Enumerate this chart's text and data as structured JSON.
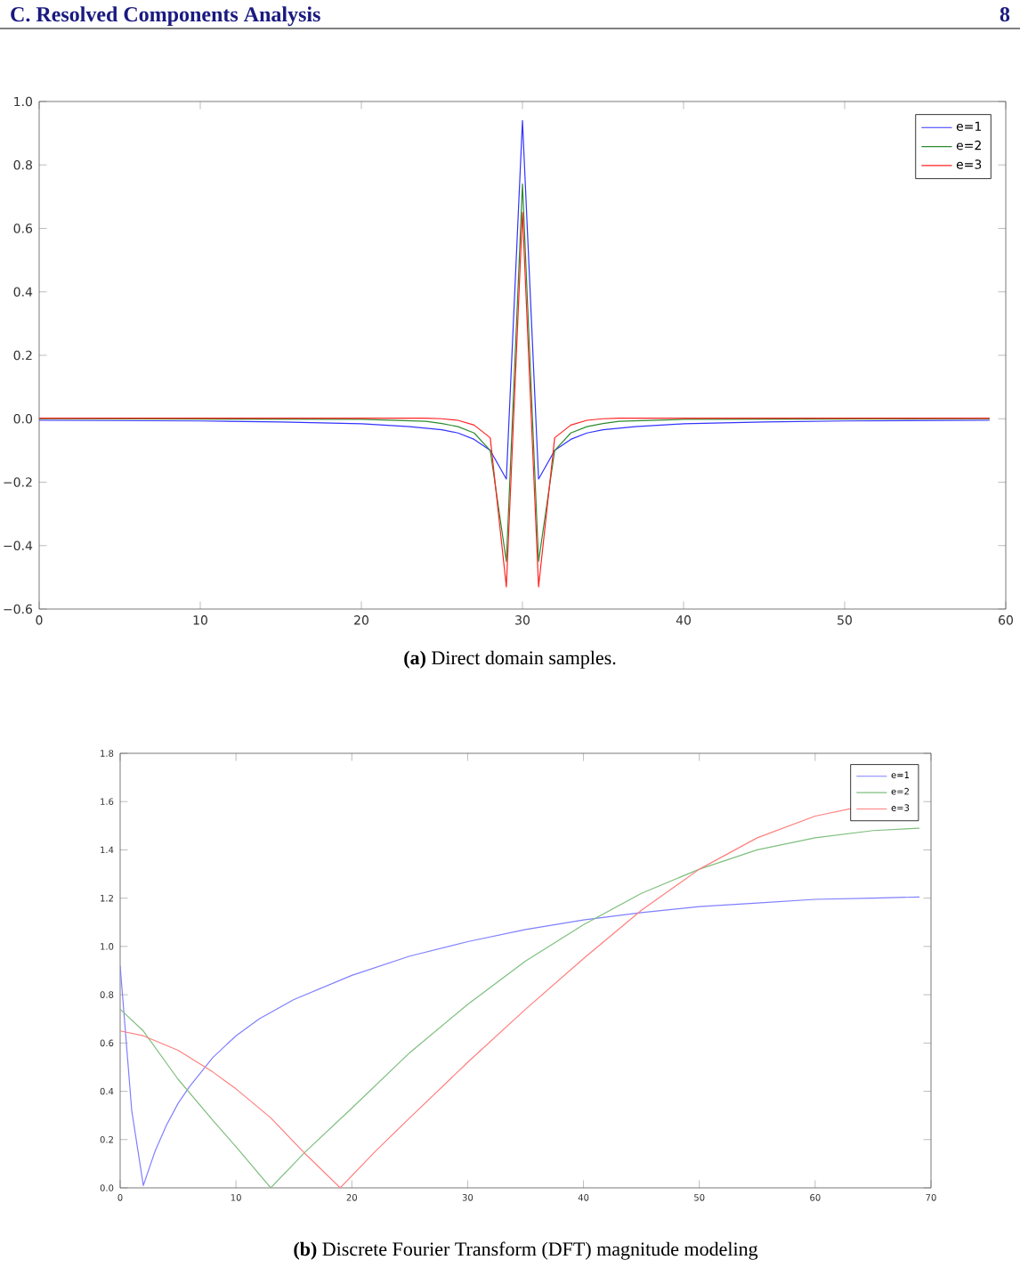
{
  "chart_data": [
    {
      "type": "line",
      "annotations": [
        "C. Resolved Components Analysis",
        "8",
        "**(a)** Direct domain samples."
      ],
      "xlim": [
        0,
        60
      ],
      "ylim": [
        -0.6,
        1.0
      ],
      "xticks": [
        0,
        10,
        20,
        30,
        40,
        50,
        60
      ],
      "yticks": [
        {
          "value": -0.6,
          "label": "−0.6"
        },
        {
          "value": -0.4,
          "label": "−0.4"
        },
        {
          "value": -0.2,
          "label": "−0.2"
        },
        {
          "value": 0,
          "label": "0.0"
        },
        {
          "value": 0.2,
          "label": "0.2"
        },
        {
          "value": 0.4,
          "label": "0.4"
        },
        {
          "value": 0.6,
          "label": "0.6"
        },
        {
          "value": 0.8,
          "label": "0.8"
        },
        {
          "value": 1.0,
          "label": "1.0"
        }
      ],
      "legend": "top right",
      "grid": false,
      "series": [
        {
          "name": "e=1",
          "color": "#3333ff",
          "x": [
            0,
            10,
            15,
            20,
            23,
            25,
            26,
            27,
            28,
            29,
            30,
            31,
            32,
            33,
            34,
            35,
            37,
            40,
            45,
            50,
            59
          ],
          "values": [
            -0.005,
            -0.007,
            -0.01,
            -0.016,
            -0.025,
            -0.035,
            -0.045,
            -0.065,
            -0.1,
            -0.19,
            0.94,
            -0.19,
            -0.1,
            -0.065,
            -0.045,
            -0.035,
            -0.025,
            -0.016,
            -0.01,
            -0.007,
            -0.005
          ]
        },
        {
          "name": "e=2",
          "color": "#2e8b2e",
          "x": [
            0,
            20,
            24,
            25,
            26,
            27,
            28,
            29,
            30,
            31,
            32,
            33,
            34,
            35,
            36,
            40,
            59
          ],
          "values": [
            0.0,
            -0.002,
            -0.008,
            -0.015,
            -0.025,
            -0.045,
            -0.1,
            -0.45,
            0.74,
            -0.45,
            -0.1,
            -0.045,
            -0.025,
            -0.015,
            -0.008,
            -0.002,
            0.0
          ]
        },
        {
          "name": "e=3",
          "color": "#ff2222",
          "x": [
            0,
            24,
            25,
            26,
            27,
            28,
            29,
            30,
            31,
            32,
            33,
            34,
            35,
            36,
            59
          ],
          "values": [
            0.002,
            0.002,
            0.0,
            -0.005,
            -0.02,
            -0.06,
            -0.53,
            0.65,
            -0.53,
            -0.06,
            -0.02,
            -0.005,
            0.0,
            0.002,
            0.002
          ]
        }
      ]
    },
    {
      "type": "line",
      "annotations": [
        "**(b)** Discrete Fourier Transform (DFT) magnitude modeling"
      ],
      "xlim": [
        0,
        70
      ],
      "ylim": [
        0,
        1.8
      ],
      "xticks": [
        0,
        10,
        20,
        30,
        40,
        50,
        60,
        70
      ],
      "yticks": [
        {
          "value": 0,
          "label": "0.0"
        },
        {
          "value": 0.2,
          "label": "0.2"
        },
        {
          "value": 0.4,
          "label": "0.4"
        },
        {
          "value": 0.6,
          "label": "0.6"
        },
        {
          "value": 0.8,
          "label": "0.8"
        },
        {
          "value": 1.0,
          "label": "1.0"
        },
        {
          "value": 1.2,
          "label": "1.2"
        },
        {
          "value": 1.4,
          "label": "1.4"
        },
        {
          "value": 1.6,
          "label": "1.6"
        },
        {
          "value": 1.8,
          "label": "1.8"
        }
      ],
      "legend": "top right",
      "grid": false,
      "series": [
        {
          "name": "e=1",
          "color": "#7f7fff",
          "x": [
            0,
            1,
            2,
            3,
            4,
            5,
            6,
            8,
            10,
            12,
            15,
            20,
            25,
            30,
            35,
            40,
            45,
            50,
            55,
            60,
            65,
            69
          ],
          "values": [
            0.92,
            0.32,
            0.01,
            0.15,
            0.26,
            0.35,
            0.42,
            0.54,
            0.63,
            0.7,
            0.78,
            0.88,
            0.96,
            1.02,
            1.07,
            1.11,
            1.14,
            1.165,
            1.18,
            1.195,
            1.2,
            1.205
          ]
        },
        {
          "name": "e=2",
          "color": "#7fbf7f",
          "x": [
            0,
            2,
            5,
            8,
            10,
            13,
            16,
            20,
            25,
            30,
            35,
            40,
            45,
            50,
            55,
            60,
            65,
            69
          ],
          "values": [
            0.74,
            0.65,
            0.45,
            0.28,
            0.17,
            0.0,
            0.15,
            0.33,
            0.56,
            0.76,
            0.94,
            1.09,
            1.22,
            1.32,
            1.4,
            1.45,
            1.48,
            1.49
          ]
        },
        {
          "name": "e=3",
          "color": "#ff7f7f",
          "x": [
            0,
            2,
            5,
            8,
            10,
            13,
            16,
            19,
            22,
            25,
            30,
            35,
            40,
            45,
            50,
            55,
            60,
            64
          ],
          "values": [
            0.65,
            0.63,
            0.57,
            0.48,
            0.41,
            0.29,
            0.14,
            0.0,
            0.15,
            0.29,
            0.52,
            0.74,
            0.95,
            1.15,
            1.32,
            1.45,
            1.54,
            1.58
          ]
        }
      ]
    }
  ]
}
